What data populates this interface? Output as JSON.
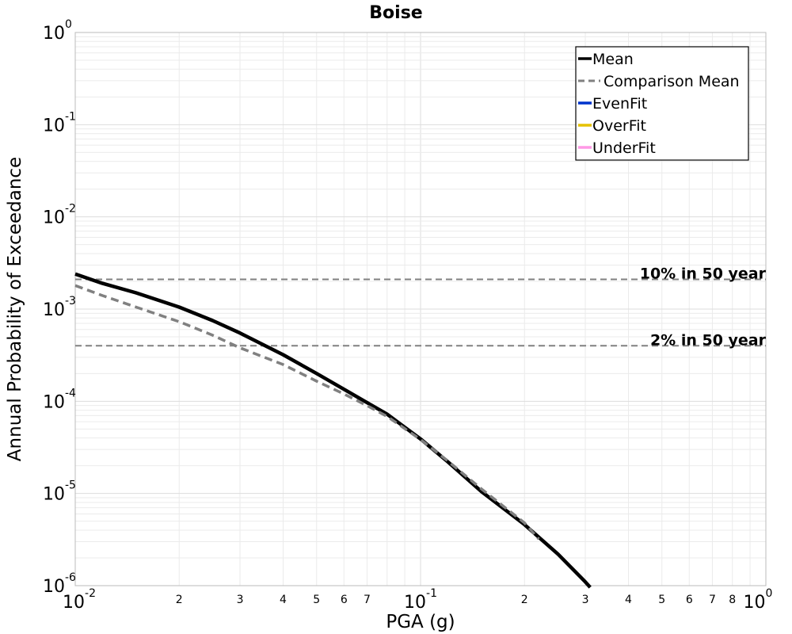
{
  "chart_data": {
    "type": "line",
    "title": "Boise",
    "xlabel": "PGA (g)",
    "ylabel": "Annual Probability of Exceedance",
    "xscale": "log",
    "yscale": "log",
    "xlim": [
      0.01,
      1.0
    ],
    "ylim": [
      1e-06,
      1.0
    ],
    "grid": true,
    "legend_position": "top-right",
    "x_major_ticks": [
      {
        "base": "10",
        "exp": "-2"
      },
      {
        "base": "10",
        "exp": "-1"
      },
      {
        "base": "10",
        "exp": "0"
      }
    ],
    "x_minor_labels": [
      "2",
      "3",
      "4",
      "5",
      "6",
      "7",
      "2",
      "3",
      "4",
      "5",
      "6",
      "7",
      "8"
    ],
    "y_major_ticks": [
      {
        "base": "10",
        "exp": "-6"
      },
      {
        "base": "10",
        "exp": "-5"
      },
      {
        "base": "10",
        "exp": "-4"
      },
      {
        "base": "10",
        "exp": "-3"
      },
      {
        "base": "10",
        "exp": "-2"
      },
      {
        "base": "10",
        "exp": "-1"
      },
      {
        "base": "10",
        "exp": "0"
      }
    ],
    "series": [
      {
        "name": "Mean",
        "color": "#000000",
        "style": "solid",
        "x": [
          0.01,
          0.012,
          0.015,
          0.02,
          0.025,
          0.03,
          0.04,
          0.05,
          0.06,
          0.07,
          0.08,
          0.1,
          0.12,
          0.15,
          0.2,
          0.25,
          0.3,
          0.31
        ],
        "y": [
          0.0024,
          0.0019,
          0.0015,
          0.00105,
          0.00075,
          0.00055,
          0.00032,
          0.0002,
          0.000135,
          9.65e-05,
          7.25e-05,
          3.9e-05,
          2.2e-05,
          1.05e-05,
          4.6e-06,
          2.2e-06,
          1.1e-06,
          9.6e-07
        ]
      },
      {
        "name": "Comparison Mean",
        "color": "#808080",
        "style": "dashed",
        "x": [
          0.01,
          0.012,
          0.015,
          0.02,
          0.025,
          0.03,
          0.04,
          0.05,
          0.06,
          0.07,
          0.08,
          0.1,
          0.12,
          0.15,
          0.2,
          0.22
        ],
        "y": [
          0.0018,
          0.0014,
          0.00105,
          0.00073,
          0.00052,
          0.00038,
          0.00025,
          0.000165,
          0.00012,
          8.95e-05,
          6.85e-05,
          3.85e-05,
          2.25e-05,
          1.12e-05,
          4.8e-06,
          3.2e-06
        ]
      },
      {
        "name": "EvenFit",
        "color": "#0033cc",
        "style": "solid",
        "x": [],
        "y": []
      },
      {
        "name": "OverFit",
        "color": "#e6c200",
        "style": "solid",
        "x": [],
        "y": []
      },
      {
        "name": "UnderFit",
        "color": "#ff99e6",
        "style": "solid",
        "x": [],
        "y": []
      }
    ],
    "reference_lines": [
      {
        "label": "10% in 50 year",
        "y": 0.0021,
        "color": "#808080"
      },
      {
        "label": "2% in 50 year",
        "y": 0.0004,
        "color": "#808080"
      }
    ]
  }
}
